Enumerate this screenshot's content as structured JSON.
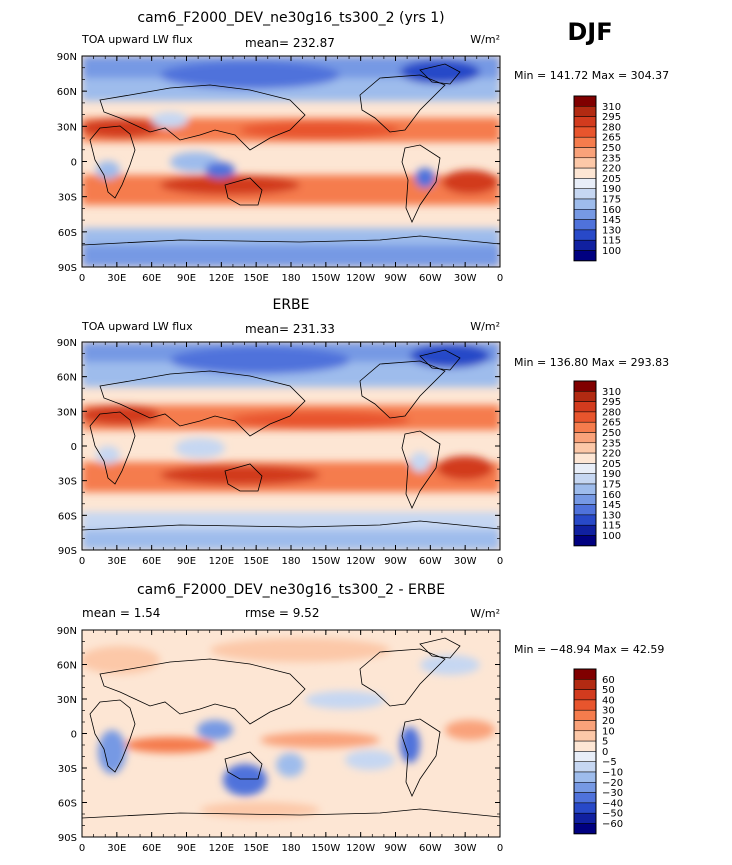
{
  "season": "DJF",
  "units": "W/m²",
  "panels": [
    {
      "title": "cam6_F2000_DEV_ne30g16_ts300_2 (yrs 1)",
      "left_label": "TOA upward LW flux",
      "stat_text": "mean=  232.87",
      "range_text": "Min = 141.72  Max = 304.37",
      "colorbar": "abs"
    },
    {
      "title": "ERBE",
      "left_label": "TOA upward LW flux",
      "stat_text": "mean=  231.33",
      "range_text": "Min = 136.80  Max = 293.83",
      "colorbar": "abs"
    },
    {
      "title": "cam6_F2000_DEV_ne30g16_ts300_2 - ERBE",
      "left_label": "mean =    1.54",
      "stat_text": "rmse =    9.52",
      "range_text": "Min = −48.94  Max =   42.59",
      "colorbar": "diff"
    }
  ],
  "lon_ticks": [
    "0",
    "30E",
    "60E",
    "90E",
    "120E",
    "150E",
    "180",
    "150W",
    "120W",
    "90W",
    "60W",
    "30W",
    "0"
  ],
  "lat_ticks": [
    "90N",
    "60N",
    "30N",
    "0",
    "30S",
    "60S",
    "90S"
  ],
  "colorbars": {
    "abs": {
      "labels": [
        "310",
        "295",
        "280",
        "265",
        "250",
        "235",
        "220",
        "205",
        "190",
        "175",
        "160",
        "145",
        "130",
        "115",
        "100"
      ],
      "colors": [
        "#800000",
        "#b22a12",
        "#d23b1e",
        "#e8552d",
        "#f57c4d",
        "#f9a27a",
        "#fcc8a8",
        "#fde6d4",
        "#e8eef8",
        "#c6d7f2",
        "#9ebcec",
        "#7699e4",
        "#4f72db",
        "#2849c8",
        "#1020a0",
        "#000080"
      ]
    },
    "diff": {
      "labels": [
        "60",
        "50",
        "40",
        "30",
        "20",
        "10",
        "5",
        "0",
        "−5",
        "−10",
        "−20",
        "−30",
        "−40",
        "−50",
        "−60"
      ],
      "colors": [
        "#800000",
        "#b22a12",
        "#d23b1e",
        "#e8552d",
        "#f57c4d",
        "#f9a27a",
        "#fcc8a8",
        "#fde6d4",
        "#e8eef8",
        "#c6d7f2",
        "#9ebcec",
        "#7699e4",
        "#4f72db",
        "#2849c8",
        "#1020a0",
        "#000080"
      ]
    }
  },
  "colors": {
    "warm_dark": "#d23b1e",
    "warm_mid": "#f57c4d",
    "warm_light": "#fcc8a8",
    "neutral": "#fde6d4",
    "cool_light": "#c6d7f2",
    "cool_mid": "#7699e4",
    "cool_dark": "#2849c8",
    "coast": "#000000"
  }
}
